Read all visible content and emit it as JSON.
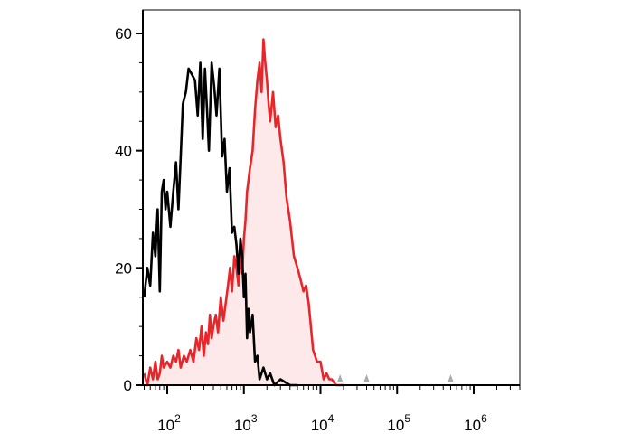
{
  "chart_data": {
    "type": "line",
    "title": "",
    "xlabel": "",
    "ylabel": "",
    "x_scale": "log",
    "xlim": [
      48,
      4000000
    ],
    "ylim": [
      0,
      60
    ],
    "grid": false,
    "legend": "none",
    "y_ticks": [
      {
        "value": 0,
        "label": "0"
      },
      {
        "value": 20,
        "label": "20"
      },
      {
        "value": 40,
        "label": "40"
      },
      {
        "value": 60,
        "label": "60"
      }
    ],
    "x_ticks": [
      {
        "value": 100,
        "base": "10",
        "exp": "2"
      },
      {
        "value": 1000,
        "base": "10",
        "exp": "3"
      },
      {
        "value": 10000,
        "base": "10",
        "exp": "4"
      },
      {
        "value": 100000,
        "base": "10",
        "exp": "5"
      },
      {
        "value": 1000000,
        "base": "10",
        "exp": "6"
      }
    ],
    "series": [
      {
        "color": "#000000",
        "fill": "none",
        "x": [
          50,
          55,
          60,
          65,
          70,
          75,
          80,
          85,
          90,
          95,
          100,
          110,
          120,
          130,
          140,
          150,
          160,
          175,
          190,
          210,
          230,
          250,
          270,
          290,
          310,
          330,
          350,
          380,
          410,
          440,
          480,
          520,
          560,
          600,
          650,
          700,
          750,
          800,
          850,
          900,
          950,
          1000,
          1050,
          1100,
          1150,
          1200,
          1300,
          1400,
          1500,
          1600,
          1800,
          2000,
          2200,
          2500,
          3000,
          4000,
          5000
        ],
        "y": [
          15,
          20,
          17,
          26,
          22,
          30,
          16,
          33,
          35,
          30,
          33,
          27,
          33,
          38,
          30,
          39,
          48,
          50,
          54,
          53,
          52,
          46,
          55,
          42,
          54,
          47,
          40,
          55,
          51,
          46,
          54,
          39,
          42,
          33,
          37,
          26,
          27,
          24,
          19,
          25,
          22,
          15,
          19,
          8,
          13,
          9,
          12,
          4,
          5,
          1,
          3,
          1,
          2,
          0,
          1,
          0,
          0
        ]
      },
      {
        "color": "#e8262a",
        "fill": "#fde9ea",
        "x": [
          50,
          55,
          60,
          65,
          70,
          75,
          80,
          85,
          90,
          100,
          110,
          120,
          130,
          140,
          150,
          165,
          180,
          200,
          220,
          240,
          260,
          280,
          300,
          320,
          340,
          360,
          380,
          400,
          430,
          460,
          500,
          540,
          580,
          620,
          660,
          700,
          750,
          800,
          850,
          900,
          950,
          1000,
          1050,
          1100,
          1200,
          1300,
          1400,
          1500,
          1600,
          1700,
          1800,
          1900,
          2000,
          2100,
          2200,
          2400,
          2600,
          2800,
          3000,
          3300,
          3600,
          4000,
          4500,
          5000,
          5500,
          6000,
          6500,
          7000,
          7500,
          8000,
          8500,
          9000,
          10000,
          11000,
          12000,
          13000,
          14000,
          16000,
          20000
        ],
        "y": [
          2,
          0,
          3,
          1,
          4,
          1,
          2,
          5,
          3,
          4,
          3,
          5,
          4,
          6,
          3,
          5,
          4,
          6,
          4,
          8,
          6,
          10,
          5,
          9,
          7,
          12,
          8,
          10,
          12,
          9,
          15,
          11,
          14,
          17,
          20,
          16,
          22,
          20,
          17,
          23,
          19,
          25,
          28,
          33,
          37,
          40,
          47,
          52,
          55,
          50,
          59,
          55,
          52,
          48,
          45,
          50,
          44,
          46,
          42,
          38,
          32,
          28,
          22,
          20,
          18,
          16,
          17,
          14,
          10,
          6,
          5,
          4,
          4,
          1,
          2,
          1,
          1,
          0,
          0
        ]
      }
    ],
    "markers": [
      {
        "x": 18000,
        "color": "#aaaaaa"
      },
      {
        "x": 40000,
        "color": "#aaaaaa"
      },
      {
        "x": 500000,
        "color": "#aaaaaa"
      }
    ]
  }
}
